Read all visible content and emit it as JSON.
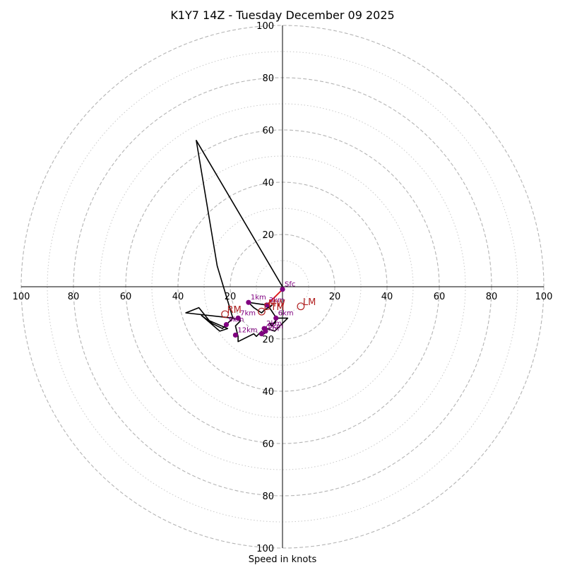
{
  "chart_data": {
    "type": "hodograph",
    "title": "K1Y7 14Z - Tuesday December 09 2025",
    "xlabel": "Speed in knots",
    "range": [
      -100,
      100
    ],
    "major_rings": [
      20,
      40,
      60,
      80,
      100
    ],
    "minor_rings": [
      10,
      30,
      50,
      70,
      90
    ],
    "ticks": {
      "left": [
        "100",
        "80",
        "60",
        "40",
        "20"
      ],
      "right": [
        "20",
        "40",
        "60",
        "80",
        "100"
      ],
      "top": [
        "20",
        "40",
        "60",
        "80",
        "100"
      ],
      "bottom": [
        "20",
        "40",
        "60",
        "80",
        "100"
      ]
    },
    "hodograph_trace": [
      [
        0,
        -1
      ],
      [
        -6,
        -7
      ],
      [
        -13,
        -6
      ],
      [
        -11,
        -8
      ],
      [
        -8,
        -10
      ],
      [
        -7,
        -9
      ],
      [
        -4,
        -7
      ],
      [
        -5,
        -8
      ],
      [
        -3,
        -11
      ],
      [
        -2,
        -12
      ],
      [
        -3,
        -14
      ],
      [
        -5,
        -14
      ],
      [
        -4,
        -15
      ],
      [
        -2,
        -12
      ],
      [
        2,
        -12
      ],
      [
        -3,
        -17
      ],
      [
        -6,
        -16
      ],
      [
        -7,
        -18
      ],
      [
        -8,
        -17
      ],
      [
        -10,
        -19
      ],
      [
        -11,
        -18
      ],
      [
        -17,
        -21
      ],
      [
        -17,
        -19
      ],
      [
        -18,
        -15
      ],
      [
        -16,
        -13
      ],
      [
        -19,
        -12
      ],
      [
        -23,
        -16
      ],
      [
        -27,
        -14
      ],
      [
        -31,
        -11
      ],
      [
        -24,
        -17
      ],
      [
        -21,
        -16
      ],
      [
        -28,
        -13
      ],
      [
        -32,
        -8
      ],
      [
        -37,
        -10
      ],
      [
        -19,
        -12
      ],
      [
        -25,
        8
      ],
      [
        -33,
        56
      ],
      [
        0,
        0
      ]
    ],
    "height_markers": [
      {
        "label": "Sfc",
        "u": 0,
        "v": -1
      },
      {
        "label": "1km",
        "u": -13,
        "v": -6
      },
      {
        "label": "3km",
        "u": -6,
        "v": -7
      },
      {
        "label": "6km",
        "u": -2.5,
        "v": -12
      },
      {
        "label": "2km",
        "u": -7,
        "v": -16
      },
      {
        "label": "4km",
        "u": -8,
        "v": -18
      },
      {
        "label": "5km",
        "u": -6.5,
        "v": -17
      },
      {
        "label": "12km",
        "u": -18,
        "v": -18.5
      },
      {
        "label": "7km",
        "u": -17,
        "v": -12
      },
      {
        "label": "9km",
        "u": -21.5,
        "v": -14.5
      }
    ],
    "motion_markers": [
      {
        "label": "LM",
        "u": 7,
        "v": -7.5
      },
      {
        "label": "RM",
        "u": -22,
        "v": -10.5
      },
      {
        "label": "DTM",
        "u": -8,
        "v": -9.5
      }
    ],
    "mean_wind": {
      "label": "MW",
      "u": -6,
      "v": -7
    },
    "shear_vector": {
      "from": [
        0,
        -1
      ],
      "to": [
        -6,
        -7
      ]
    }
  }
}
